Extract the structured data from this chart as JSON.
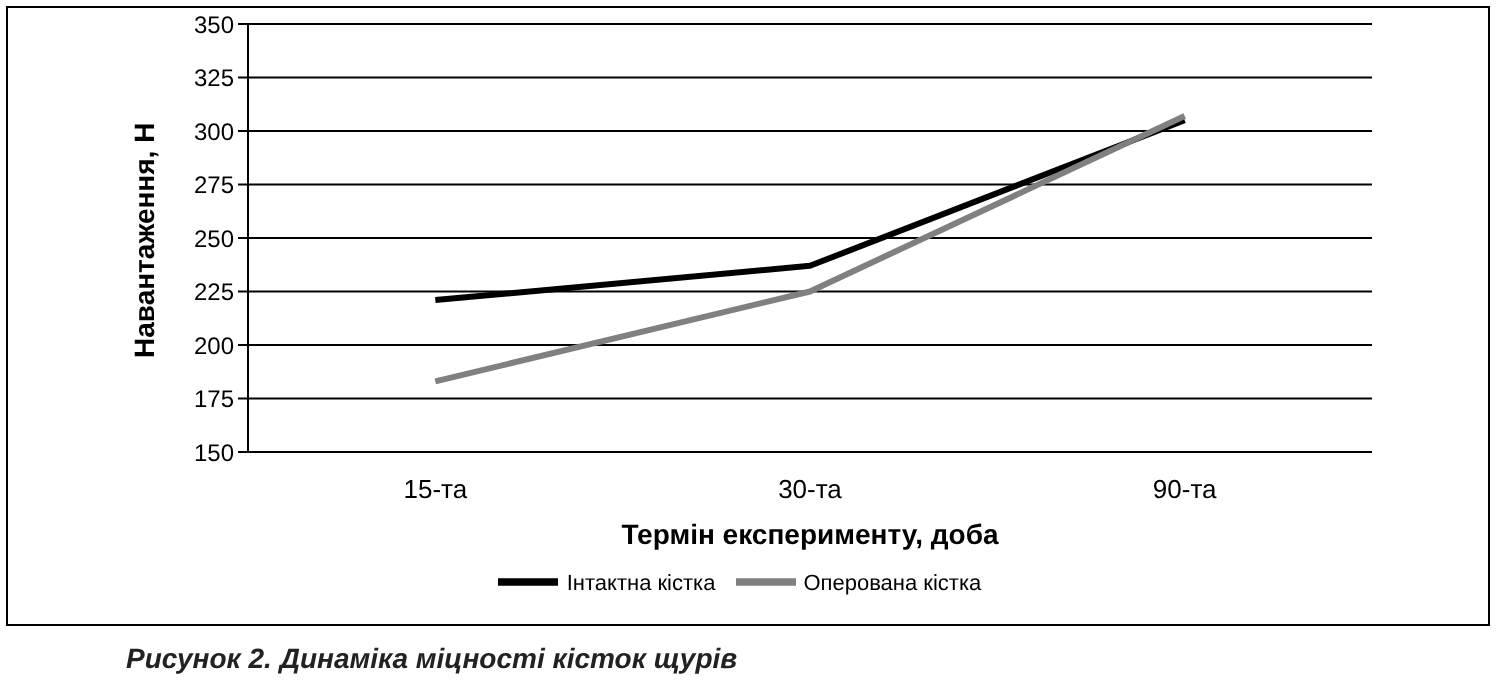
{
  "chart_data": {
    "type": "line",
    "title": "Рисунок 2. Динаміка міцності кісток щурів",
    "xlabel": "Термін експерименту, доба",
    "ylabel": "Навантаження, Н",
    "categories": [
      "15-та",
      "30-та",
      "90-та"
    ],
    "series": [
      {
        "name": "Інтактна кістка",
        "color": "#000000",
        "values": [
          221,
          237,
          305
        ]
      },
      {
        "name": "Оперована кістка",
        "color": "#808080",
        "values": [
          183,
          225,
          307
        ]
      }
    ],
    "ylim": [
      150,
      350
    ],
    "yticks": [
      150,
      175,
      200,
      225,
      250,
      275,
      300,
      325,
      350
    ],
    "grid": "y",
    "legend": "bottom",
    "marker": "none",
    "line_style": "solid"
  }
}
